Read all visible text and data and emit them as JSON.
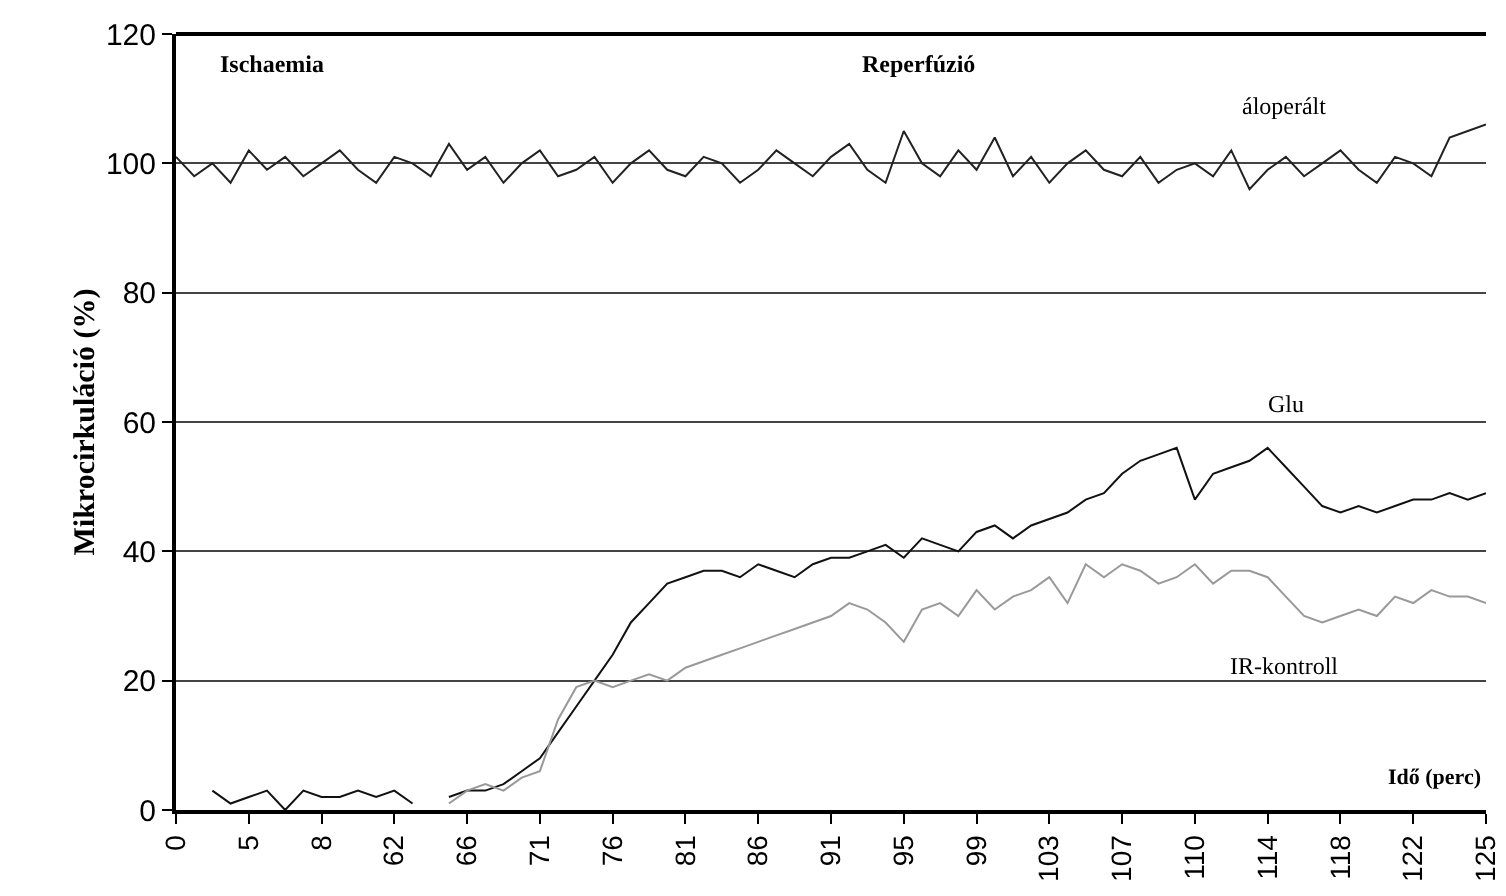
{
  "chart_data": {
    "type": "line",
    "ylabel": "Mikrocirkuláció (%)",
    "xlabel": "Idő (perc)",
    "categories": [
      "0",
      null,
      null,
      null,
      "5",
      null,
      null,
      null,
      "8",
      null,
      null,
      null,
      "62",
      null,
      null,
      null,
      "66",
      null,
      null,
      null,
      "71",
      null,
      null,
      null,
      "76",
      null,
      null,
      null,
      "81",
      null,
      null,
      null,
      "86",
      null,
      null,
      null,
      "91",
      null,
      null,
      null,
      "95",
      null,
      null,
      null,
      "99",
      null,
      null,
      null,
      "103",
      null,
      null,
      null,
      "107",
      null,
      null,
      null,
      "110",
      null,
      null,
      null,
      "114",
      null,
      null,
      null,
      "118",
      null,
      null,
      null,
      "122",
      null,
      null,
      null,
      "125"
    ],
    "ylim": [
      0,
      120
    ],
    "yticks": [
      0,
      20,
      40,
      60,
      80,
      100,
      120
    ],
    "grid": "y",
    "legend": false,
    "marker": "none",
    "line_style": "solid",
    "annotations": [
      "Ischaemia",
      "Reperfúzió"
    ],
    "series": [
      {
        "name": "áloperált",
        "color": "#222222",
        "values": [
          101,
          98,
          100,
          97,
          102,
          99,
          101,
          98,
          100,
          102,
          99,
          97,
          101,
          100,
          98,
          103,
          99,
          101,
          97,
          100,
          102,
          98,
          99,
          101,
          97,
          100,
          102,
          99,
          98,
          101,
          100,
          97,
          99,
          102,
          100,
          98,
          101,
          103,
          99,
          97,
          105,
          100,
          98,
          102,
          99,
          104,
          98,
          101,
          97,
          100,
          102,
          99,
          98,
          101,
          97,
          99,
          100,
          98,
          102,
          96,
          99,
          101,
          98,
          100,
          102,
          99,
          97,
          101,
          100,
          98,
          104,
          105,
          106
        ]
      },
      {
        "name": "Glu",
        "color": "#111111",
        "values": [
          null,
          null,
          3,
          1,
          2,
          3,
          0,
          3,
          2,
          2,
          3,
          2,
          3,
          1,
          null,
          2,
          3,
          3,
          4,
          6,
          8,
          12,
          16,
          20,
          24,
          29,
          32,
          35,
          36,
          37,
          37,
          36,
          38,
          37,
          36,
          38,
          39,
          39,
          40,
          41,
          39,
          42,
          41,
          40,
          43,
          44,
          42,
          44,
          45,
          46,
          48,
          49,
          52,
          54,
          55,
          56,
          48,
          52,
          53,
          54,
          56,
          53,
          50,
          47,
          46,
          47,
          46,
          47,
          48,
          48,
          49,
          48,
          49
        ]
      },
      {
        "name": "IR-kontroll",
        "color": "#999999",
        "values": [
          null,
          null,
          null,
          null,
          null,
          null,
          null,
          null,
          null,
          null,
          null,
          null,
          null,
          null,
          null,
          1,
          3,
          4,
          3,
          5,
          6,
          14,
          19,
          20,
          19,
          20,
          21,
          20,
          22,
          23,
          24,
          25,
          26,
          27,
          28,
          29,
          30,
          32,
          31,
          29,
          26,
          31,
          32,
          30,
          34,
          31,
          33,
          34,
          36,
          32,
          38,
          36,
          38,
          37,
          35,
          36,
          38,
          35,
          37,
          37,
          36,
          33,
          30,
          29,
          30,
          31,
          30,
          33,
          32,
          34,
          33,
          33,
          32
        ]
      }
    ]
  }
}
